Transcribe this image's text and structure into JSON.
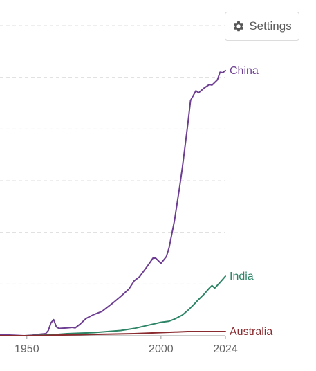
{
  "settings_button": {
    "label": "Settings",
    "icon": "gear-icon"
  },
  "chart_data": {
    "type": "line",
    "title": "",
    "xlabel": "",
    "ylabel": "",
    "xlim": [
      1940,
      2024
    ],
    "ylim": [
      0,
      600
    ],
    "x_ticks": [
      1950,
      2000,
      2024
    ],
    "y_gridlines": [
      100,
      200,
      300,
      400,
      500,
      600
    ],
    "grid": true,
    "legend": "line-end labels",
    "series": [
      {
        "name": "China",
        "color": "#6d3e91",
        "x": [
          1940,
          1945,
          1949,
          1952,
          1955,
          1957,
          1958,
          1959,
          1960,
          1961,
          1962,
          1965,
          1967,
          1968,
          1970,
          1972,
          1975,
          1978,
          1980,
          1982,
          1985,
          1988,
          1990,
          1992,
          1995,
          1997,
          1998,
          2000,
          2002,
          2003,
          2005,
          2007,
          2008,
          2010,
          2011,
          2013,
          2014,
          2016,
          2018,
          2019,
          2021,
          2022,
          2023,
          2024
        ],
        "y": [
          2,
          1,
          0,
          1,
          3,
          4,
          10,
          25,
          31,
          17,
          14,
          15,
          16,
          15,
          23,
          33,
          41,
          47,
          55,
          63,
          76,
          90,
          106,
          114,
          135,
          150,
          150,
          140,
          153,
          170,
          222,
          290,
          327,
          410,
          455,
          474,
          470,
          479,
          486,
          485,
          495,
          510,
          509,
          513
        ]
      },
      {
        "name": "India",
        "color": "#2c8465",
        "x": [
          1940,
          1950,
          1955,
          1960,
          1965,
          1970,
          1975,
          1980,
          1985,
          1990,
          1995,
          2000,
          2003,
          2005,
          2008,
          2010,
          2012,
          2014,
          2016,
          2018,
          2019,
          2020,
          2022,
          2024
        ],
        "y": [
          0,
          0,
          1,
          2,
          4,
          5,
          6,
          8,
          10,
          14,
          20,
          26,
          28,
          32,
          40,
          49,
          59,
          70,
          80,
          92,
          97,
          92,
          103,
          115
        ]
      },
      {
        "name": "Australia",
        "color": "#8a2b2f",
        "x": [
          1940,
          1950,
          1960,
          1970,
          1980,
          1990,
          2000,
          2005,
          2010,
          2015,
          2020,
          2024
        ],
        "y": [
          0,
          0,
          1,
          2,
          3,
          4,
          6,
          7,
          8,
          8,
          8,
          8
        ]
      }
    ]
  }
}
